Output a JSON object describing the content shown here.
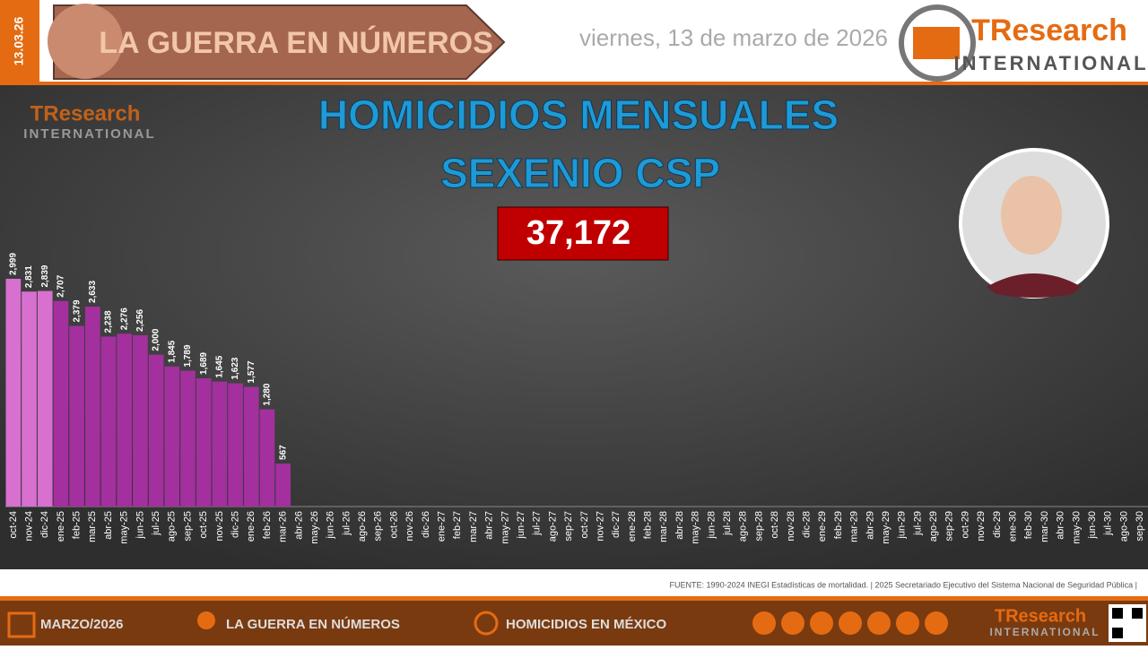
{
  "header": {
    "date_tag": "13.03.26",
    "banner": "LA GUERRA EN NÚMEROS",
    "date": "viernes, 13 de marzo de 2026",
    "logo": "TResearch",
    "logo_sub": "INTERNATIONAL"
  },
  "chart_data": {
    "type": "bar",
    "title": "HOMICIDIOS MENSUALES",
    "subtitle": "SEXENIO CSP",
    "total": "37,172",
    "categories": [
      "oct-24",
      "nov-24",
      "dic-24",
      "ene-25",
      "feb-25",
      "mar-25",
      "abr-25",
      "may-25",
      "jun-25",
      "jul-25",
      "ago-25",
      "sep-25",
      "oct-25",
      "nov-25",
      "dic-25",
      "ene-26",
      "feb-26",
      "mar-26",
      "abr-26",
      "may-26",
      "jun-26",
      "jul-26",
      "ago-26",
      "sep-26",
      "oct-26",
      "nov-26",
      "dic-26",
      "ene-27",
      "feb-27",
      "mar-27",
      "abr-27",
      "may-27",
      "jun-27",
      "jul-27",
      "ago-27",
      "sep-27",
      "oct-27",
      "nov-27",
      "dic-27",
      "ene-28",
      "feb-28",
      "mar-28",
      "abr-28",
      "may-28",
      "jun-28",
      "jul-28",
      "ago-28",
      "sep-28",
      "oct-28",
      "nov-28",
      "dic-28",
      "ene-29",
      "feb-29",
      "mar-29",
      "abr-29",
      "may-29",
      "jun-29",
      "jul-29",
      "ago-29",
      "sep-29",
      "oct-29",
      "nov-29",
      "dic-29",
      "ene-30",
      "feb-30",
      "mar-30",
      "abr-30",
      "may-30",
      "jun-30",
      "jul-30",
      "ago-30",
      "sep-30"
    ],
    "values": [
      2999,
      2831,
      2839,
      2707,
      2379,
      2633,
      2238,
      2276,
      2256,
      2000,
      1845,
      1789,
      1689,
      1645,
      1623,
      1577,
      1280,
      567,
      null,
      null,
      null,
      null,
      null,
      null,
      null,
      null,
      null,
      null,
      null,
      null,
      null,
      null,
      null,
      null,
      null,
      null,
      null,
      null,
      null,
      null,
      null,
      null,
      null,
      null,
      null,
      null,
      null,
      null,
      null,
      null,
      null,
      null,
      null,
      null,
      null,
      null,
      null,
      null,
      null,
      null,
      null,
      null,
      null,
      null,
      null,
      null,
      null,
      null,
      null,
      null,
      null,
      null
    ],
    "value_labels": [
      "2,999",
      "2,831",
      "2,839",
      "2,707",
      "2,379",
      "2,633",
      "2,238",
      "2,276",
      "2,256",
      "2,000",
      "1,845",
      "1,789",
      "1,689",
      "1,645",
      "1,623",
      "1,577",
      "1,280",
      "567",
      null,
      null,
      null,
      null,
      null,
      null,
      null,
      null,
      null,
      null,
      null,
      null,
      null,
      null,
      null,
      null,
      null,
      null,
      null,
      null,
      null,
      null,
      null,
      null,
      null,
      null,
      null,
      null,
      null,
      null,
      null,
      null,
      null,
      null,
      null,
      null,
      null,
      null,
      null,
      null,
      null,
      null,
      null,
      null,
      null,
      null,
      null,
      null,
      null,
      null,
      null,
      null,
      null,
      null
    ],
    "colors": [
      "#d870d0",
      "#d870d0",
      "#d870d0",
      "#a3309e",
      "#a3309e",
      "#a3309e",
      "#a3309e",
      "#a3309e",
      "#a3309e",
      "#a3309e",
      "#a3309e",
      "#a3309e",
      "#a3309e",
      "#a3309e",
      "#a3309e",
      "#a3309e",
      "#a3309e",
      "#a3309e",
      null,
      null,
      null,
      null,
      null,
      null,
      null,
      null,
      null,
      null,
      null,
      null,
      null,
      null,
      null,
      null,
      null,
      null,
      null,
      null,
      null,
      null,
      null,
      null,
      null,
      null,
      null,
      null,
      null,
      null,
      null,
      null,
      null,
      null,
      null,
      null,
      null,
      null,
      null,
      null,
      null,
      null,
      null,
      null,
      null,
      null,
      null,
      null,
      null,
      null,
      null,
      null,
      null,
      null
    ],
    "ylim": [
      0,
      3000
    ],
    "source": "FUENTE: 1990-2024 INEGI Estadísticas de mortalidad. | 2025 Secretariado Ejecutivo del Sistema Nacional de Seguridad Pública |"
  },
  "footer": {
    "month": "MARZO/2026",
    "section": "LA GUERRA EN NÚMEROS",
    "topic": "HOMICIDIOS EN MÉXICO"
  }
}
